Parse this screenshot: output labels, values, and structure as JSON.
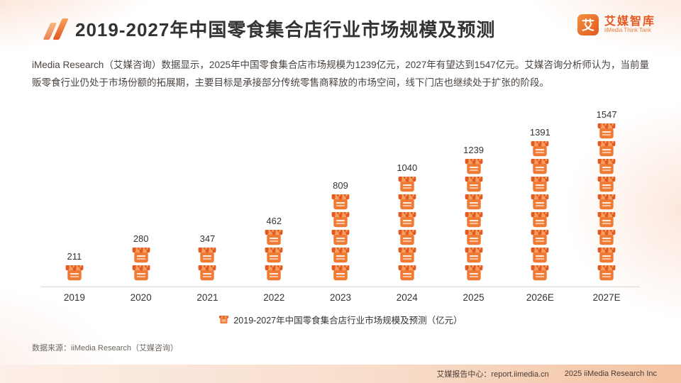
{
  "page": {
    "title": "2019-2027年中国零食集合店行业市场规模及预测",
    "logo": {
      "glyph": "艾",
      "brand": "艾媒智库",
      "sub": "iiMedia Think Tank"
    },
    "description": "iMedia Research（艾媒咨询）数据显示，2025年中国零食集合店市场规模为1239亿元，2027年有望达到1547亿元。艾媒咨询分析师认为，当前量贩零食行业仍处于市场份额的拓展期，主要目标是承接部分传统零售商释放的市场空间，线下门店也继续处于扩张的阶段。",
    "source": "数据来源：iiMedia Research（艾媒咨询）",
    "footer": {
      "report_center": "艾媒报告中心：report.iimedia.cn",
      "copyright": "2025 iiMedia Research Inc"
    }
  },
  "chart_data": {
    "type": "bar",
    "categories": [
      "2019",
      "2020",
      "2021",
      "2022",
      "2023",
      "2024",
      "2025",
      "2026E",
      "2027E"
    ],
    "values": [
      211,
      280,
      347,
      462,
      809,
      1040,
      1239,
      1391,
      1547
    ],
    "title": "2019-2027年中国零食集合店行业市场规模及预测",
    "legend": "2019-2027年中国零食集合店行业市场规模及预测（亿元）",
    "unit": "亿元",
    "xlabel": "",
    "ylabel": "",
    "ylim": [
      0,
      1600
    ],
    "grid": false,
    "legend_position": "bottom",
    "accent_color": "#E4581F",
    "pictogram_unit": 172
  }
}
